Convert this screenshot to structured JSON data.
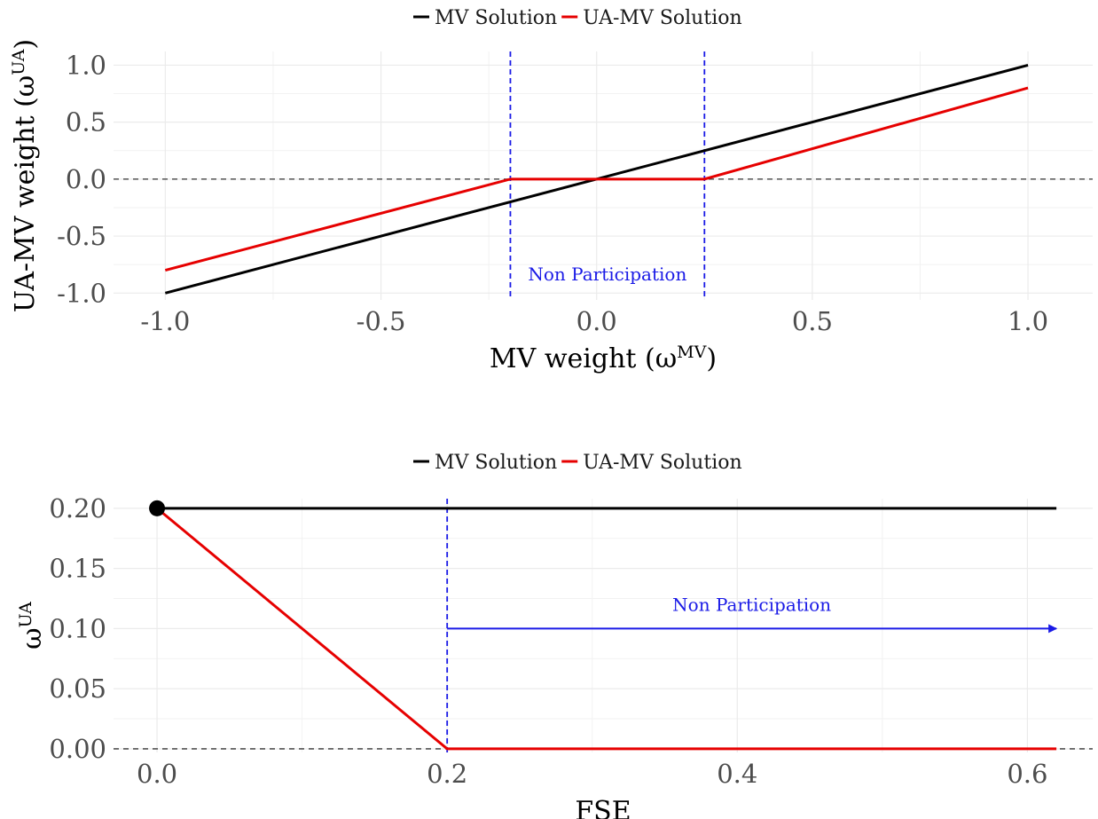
{
  "chart_data": [
    {
      "type": "line",
      "title": "",
      "xlabel": "MV weight (ω",
      "xlabel_sup": "MV",
      "xlabel_close": ")",
      "ylabel": "UA-MV weight (ω",
      "ylabel_sup": "UA",
      "ylabel_close": ")",
      "xlim": [
        -1.12,
        1.15
      ],
      "ylim": [
        -1.06,
        1.12
      ],
      "x_ticks": [
        "-1.0",
        "-0.5",
        "0.0",
        "0.5",
        "1.0"
      ],
      "x_tick_values": [
        -1.0,
        -0.5,
        0.0,
        0.5,
        1.0
      ],
      "y_ticks": [
        "-1.0",
        "-0.5",
        "0.0",
        "0.5",
        "1.0"
      ],
      "y_tick_values": [
        -1.0,
        -0.5,
        0.0,
        0.5,
        1.0
      ],
      "grid": true,
      "legend_position": "top",
      "series": [
        {
          "name": "MV Solution",
          "color": "#000000",
          "x": [
            -1.0,
            1.0
          ],
          "y": [
            -1.0,
            1.0
          ]
        },
        {
          "name": "UA-MV Solution",
          "color": "#e60000",
          "x": [
            -1.0,
            -0.2,
            0.25,
            1.0
          ],
          "y": [
            -0.8,
            0.0,
            0.0,
            0.8
          ]
        }
      ],
      "reference_lines": {
        "horizontal": [
          0.0
        ],
        "vertical": [
          -0.2,
          0.25
        ],
        "vertical_color": "#1a1ae6"
      },
      "annotation": "Non Participation"
    },
    {
      "type": "line",
      "title": "",
      "xlabel": "FSE",
      "ylabel": "ω",
      "ylabel_sup": "UA",
      "xlim": [
        -0.03,
        0.645
      ],
      "ylim": [
        -0.003,
        0.208
      ],
      "x_ticks": [
        "0.0",
        "0.2",
        "0.4",
        "0.6"
      ],
      "x_tick_values": [
        0.0,
        0.2,
        0.4,
        0.6
      ],
      "y_ticks": [
        "0.00",
        "0.05",
        "0.10",
        "0.15",
        "0.20"
      ],
      "y_tick_values": [
        0.0,
        0.05,
        0.1,
        0.15,
        0.2
      ],
      "grid": true,
      "legend_position": "top",
      "series": [
        {
          "name": "MV Solution",
          "color": "#000000",
          "x": [
            0.0,
            0.62
          ],
          "y": [
            0.2,
            0.2
          ]
        },
        {
          "name": "UA-MV Solution",
          "color": "#e60000",
          "x": [
            0.0,
            0.2,
            0.62
          ],
          "y": [
            0.2,
            0.0,
            0.0
          ]
        }
      ],
      "marker_point": {
        "x": 0.0,
        "y": 0.2
      },
      "reference_lines": {
        "horizontal": [
          0.0
        ],
        "vertical": [
          0.2
        ],
        "vertical_color": "#1a1ae6"
      },
      "arrow": {
        "x_start": 0.2,
        "x_end": 0.62,
        "y": 0.1,
        "color": "#1a1ae6"
      },
      "annotation": "Non Participation"
    }
  ]
}
